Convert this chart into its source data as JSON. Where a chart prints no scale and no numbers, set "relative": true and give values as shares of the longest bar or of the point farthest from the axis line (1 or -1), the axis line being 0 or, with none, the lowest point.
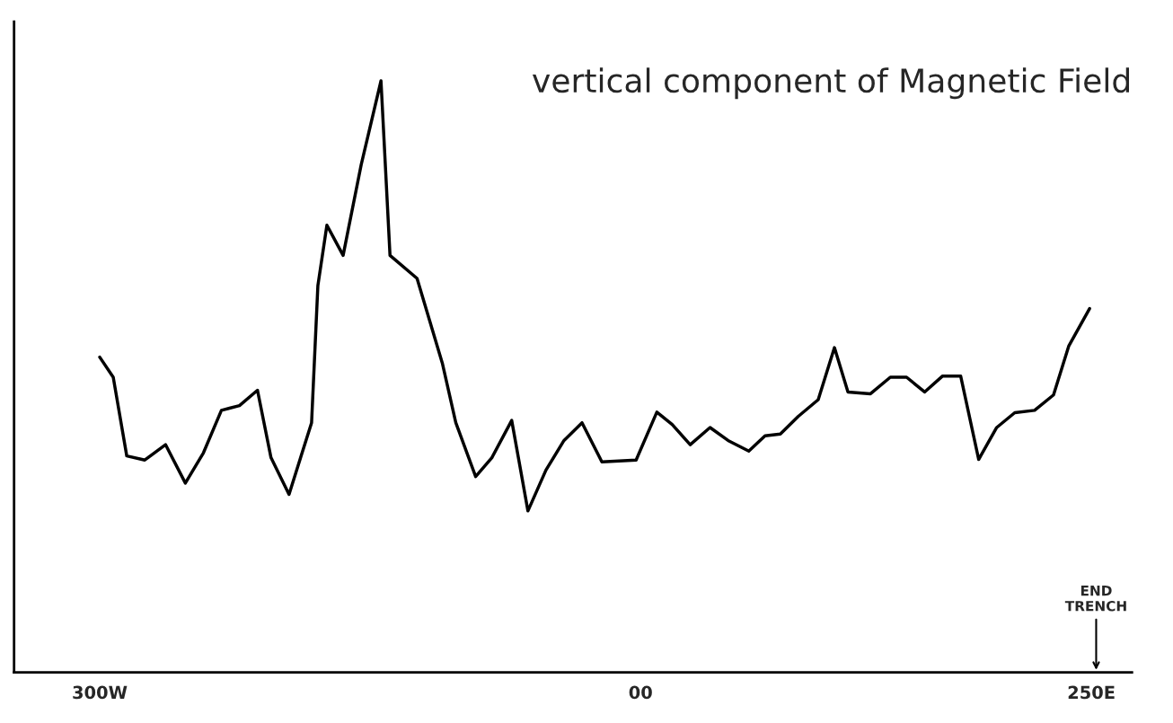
{
  "chart_data": {
    "type": "line",
    "title": "vertical component of Magnetic Field",
    "relative": true,
    "xlim": [
      -347.5,
      272.5
    ],
    "xticks": [
      {
        "value": -300,
        "label": "300W"
      },
      {
        "value": 0,
        "label": "00"
      },
      {
        "value": 250,
        "label": "250E"
      }
    ],
    "annotations": [
      "END\nTRENCH"
    ],
    "grid": false,
    "marker": "none",
    "line_style": "solid",
    "series": [
      {
        "color": "#000000",
        "x": [
          -300,
          -292.5,
          -285,
          -275,
          -263.5,
          -252.5,
          -242.5,
          -232.5,
          -222.5,
          -212.5,
          -205,
          -195,
          -182.5,
          -179,
          -174,
          -165,
          -155,
          -144,
          -139,
          -124,
          -110,
          -102.5,
          -91.5,
          -82.5,
          -71.5,
          -62.5,
          -52.5,
          -42.5,
          -32.5,
          -21.5,
          -2.5,
          9,
          17.5,
          27.5,
          38.5,
          48.5,
          60,
          69,
          77.5,
          87.5,
          98.5,
          107.5,
          115,
          127.5,
          138.5,
          147.5,
          157.5,
          167.5,
          177.5,
          187.5,
          197.5,
          207.5,
          218.5,
          229,
          237.5,
          249
        ],
        "values": [
          0.533,
          0.499,
          0.366,
          0.359,
          0.385,
          0.32,
          0.371,
          0.443,
          0.451,
          0.477,
          0.363,
          0.301,
          0.422,
          0.654,
          0.756,
          0.705,
          0.858,
          1.0,
          0.705,
          0.666,
          0.523,
          0.422,
          0.331,
          0.363,
          0.426,
          0.273,
          0.342,
          0.392,
          0.422,
          0.356,
          0.359,
          0.44,
          0.419,
          0.385,
          0.414,
          0.392,
          0.374,
          0.4,
          0.403,
          0.433,
          0.461,
          0.549,
          0.474,
          0.471,
          0.499,
          0.499,
          0.474,
          0.501,
          0.501,
          0.36,
          0.414,
          0.439,
          0.443,
          0.469,
          0.552,
          0.615
        ]
      }
    ]
  }
}
